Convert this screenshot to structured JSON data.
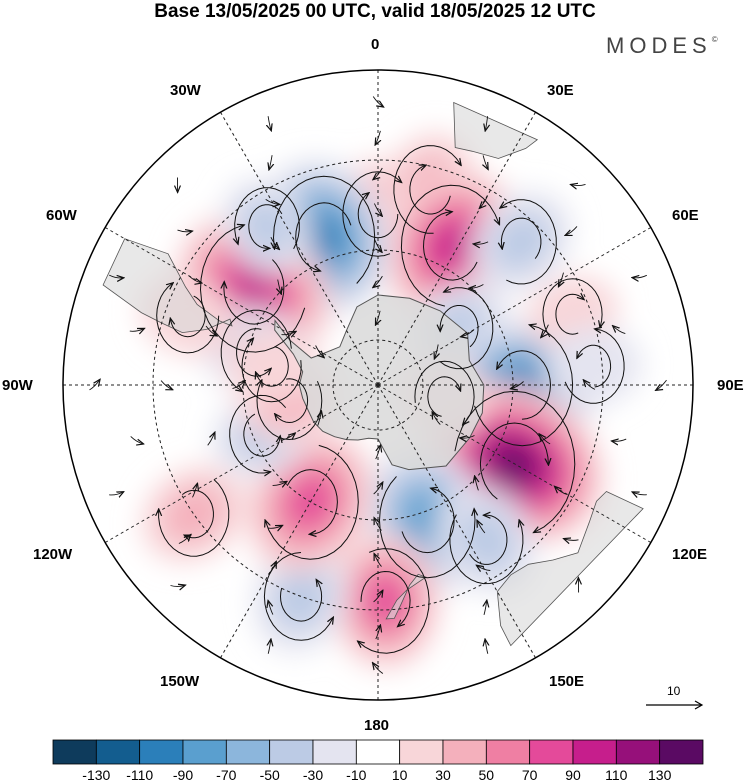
{
  "title": "Base 13/05/2025 00 UTC, valid 18/05/2025 12 UTC",
  "brand": "MODES",
  "brand_mark": "©",
  "longitude_labels": {
    "lon_0": "0",
    "lon_30e": "30E",
    "lon_60e": "60E",
    "lon_90e": "90E",
    "lon_120e": "120E",
    "lon_150e": "150E",
    "lon_180": "180",
    "lon_150w": "150W",
    "lon_120w": "120W",
    "lon_90w": "90W",
    "lon_60w": "60W",
    "lon_30w": "30W"
  },
  "colorbar": {
    "colors": [
      "#0e3b5c",
      "#135d8f",
      "#2b7fba",
      "#5a9fcf",
      "#8cb6dc",
      "#bccbe5",
      "#e4e4f0",
      "#ffffff",
      "#f8d6d9",
      "#f4b0bc",
      "#ef7fa3",
      "#e44a9a",
      "#c61e8c",
      "#96107a",
      "#5a0a63"
    ],
    "labels": [
      "-130",
      "-110",
      "-90",
      "-70",
      "-50",
      "-30",
      "-10",
      "10",
      "30",
      "50",
      "70",
      "90",
      "110",
      "130"
    ]
  },
  "reference_vector": {
    "value": "10"
  },
  "colors": {
    "land": "#d9d9d9",
    "graticule": "#222222",
    "coast": "#555555",
    "streamline": "#111111"
  },
  "anomaly_features": [
    {
      "lat": -52,
      "lon": 0,
      "value": 40
    },
    {
      "lat": -45,
      "lon": 15,
      "value": 45
    },
    {
      "lat": -55,
      "lon": 28,
      "value": 95
    },
    {
      "lat": -55,
      "lon": -20,
      "value": -95
    },
    {
      "lat": -55,
      "lon": -52,
      "value": 105
    },
    {
      "lat": -62,
      "lon": -75,
      "value": -40
    },
    {
      "lat": -47,
      "lon": -35,
      "value": -30
    },
    {
      "lat": -45,
      "lon": 45,
      "value": -40
    },
    {
      "lat": -68,
      "lon": 55,
      "value": -35
    },
    {
      "lat": -58,
      "lon": 90,
      "value": -95
    },
    {
      "lat": -55,
      "lon": 120,
      "value": 130
    },
    {
      "lat": -58,
      "lon": 160,
      "value": -85
    },
    {
      "lat": -48,
      "lon": 145,
      "value": -45
    },
    {
      "lat": -42,
      "lon": 178,
      "value": 70
    },
    {
      "lat": -40,
      "lon": -160,
      "value": -45
    },
    {
      "lat": -60,
      "lon": -150,
      "value": 85
    },
    {
      "lat": -40,
      "lon": -125,
      "value": 40
    },
    {
      "lat": -62,
      "lon": -113,
      "value": -30
    },
    {
      "lat": -70,
      "lon": -100,
      "value": 30
    },
    {
      "lat": -66,
      "lon": -80,
      "value": 20
    },
    {
      "lat": -44,
      "lon": 70,
      "value": 20
    },
    {
      "lat": -42,
      "lon": 85,
      "value": -25
    },
    {
      "lat": -45,
      "lon": -70,
      "value": 25
    },
    {
      "lat": -75,
      "lon": 100,
      "value": 20
    }
  ]
}
